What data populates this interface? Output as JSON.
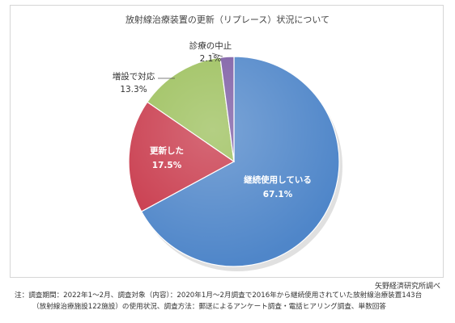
{
  "chart_data": {
    "type": "pie",
    "title": "放射線治療装置の更新（リプレース）状況について",
    "slices": [
      {
        "label": "継続使用している",
        "value": 67.1,
        "value_label": "67.1%",
        "color": "#4f86c9",
        "label_color": "#ffffff"
      },
      {
        "label": "更新した",
        "value": 17.5,
        "value_label": "17.5%",
        "color": "#c8384a",
        "label_color": "#ffffff"
      },
      {
        "label": "増設で対応",
        "value": 13.3,
        "value_label": "13.3%",
        "color": "#9bbf5a",
        "label_color": "#333333"
      },
      {
        "label": "診療の中止",
        "value": 2.1,
        "value_label": "2.1%",
        "color": "#7b5aa3",
        "label_color": "#333333"
      }
    ],
    "start_angle_deg": 0,
    "direction": "clockwise"
  },
  "source": "矢野経済研究所調べ",
  "notes": [
    "注：調査期間：2022年1～2月、調査対象（内容）：2020年1月～2月調査で2016年から継続使用されていた放射線治療装置143台",
    "（放射線治療施設122施設）の使用状況、調査方法：郵送によるアンケート調査・電話ヒアリング調査、単数回答"
  ]
}
